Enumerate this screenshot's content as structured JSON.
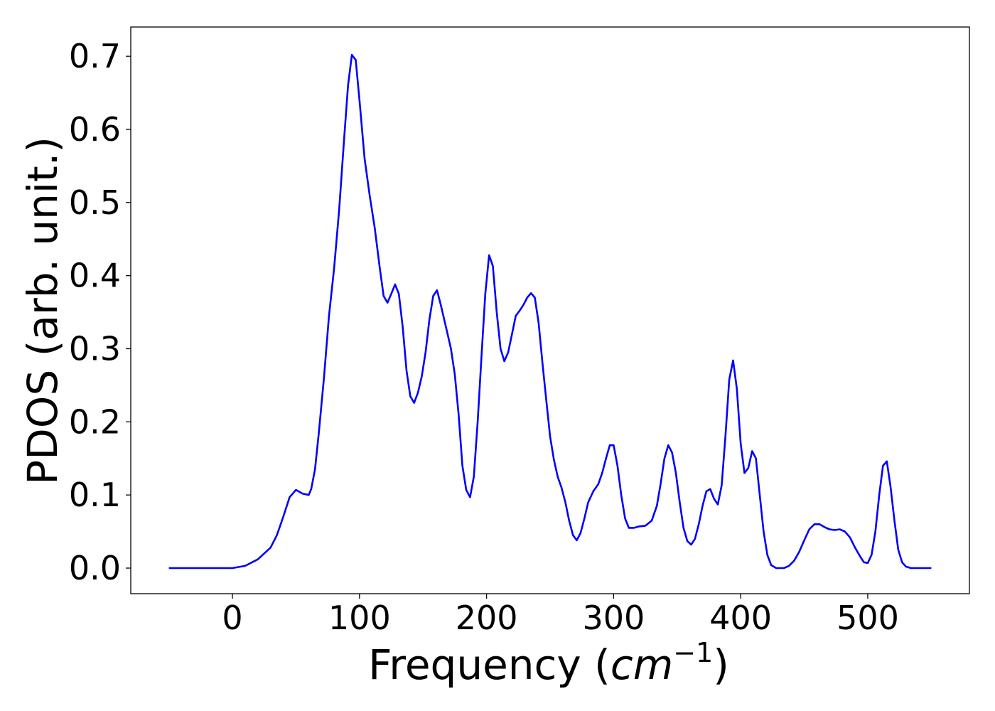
{
  "chart_data": {
    "type": "line",
    "title": "",
    "xlabel": "Frequency",
    "xlabel_unit": "cm",
    "xlabel_unit_exponent": "−1",
    "ylabel": "PDOS (arb. unit.)",
    "xlim": [
      -80,
      580
    ],
    "ylim": [
      -0.035,
      0.74
    ],
    "xticks": [
      0,
      100,
      200,
      300,
      400,
      500
    ],
    "yticks": [
      0.0,
      0.1,
      0.2,
      0.3,
      0.4,
      0.5,
      0.6,
      0.7
    ],
    "xtick_labels": [
      "0",
      "100",
      "200",
      "300",
      "400",
      "500"
    ],
    "ytick_labels": [
      "0.0",
      "0.1",
      "0.2",
      "0.3",
      "0.4",
      "0.5",
      "0.6",
      "0.7"
    ],
    "grid": false,
    "colors": {
      "line": "#0000ff",
      "axes": "#000000",
      "background": "#ffffff"
    },
    "series": [
      {
        "points": [
          [
            -50,
            0.0
          ],
          [
            0,
            0.0
          ],
          [
            10,
            0.003
          ],
          [
            20,
            0.012
          ],
          [
            30,
            0.028
          ],
          [
            35,
            0.045
          ],
          [
            40,
            0.07
          ],
          [
            45,
            0.097
          ],
          [
            50,
            0.107
          ],
          [
            55,
            0.102
          ],
          [
            60,
            0.1
          ],
          [
            62,
            0.108
          ],
          [
            65,
            0.135
          ],
          [
            68,
            0.185
          ],
          [
            72,
            0.26
          ],
          [
            76,
            0.345
          ],
          [
            80,
            0.41
          ],
          [
            84,
            0.49
          ],
          [
            88,
            0.59
          ],
          [
            91,
            0.66
          ],
          [
            94,
            0.702
          ],
          [
            97,
            0.695
          ],
          [
            100,
            0.64
          ],
          [
            104,
            0.56
          ],
          [
            108,
            0.51
          ],
          [
            112,
            0.465
          ],
          [
            116,
            0.41
          ],
          [
            119,
            0.372
          ],
          [
            122,
            0.363
          ],
          [
            125,
            0.375
          ],
          [
            128,
            0.388
          ],
          [
            131,
            0.375
          ],
          [
            134,
            0.33
          ],
          [
            137,
            0.27
          ],
          [
            140,
            0.235
          ],
          [
            143,
            0.226
          ],
          [
            146,
            0.24
          ],
          [
            149,
            0.262
          ],
          [
            152,
            0.295
          ],
          [
            155,
            0.34
          ],
          [
            158,
            0.372
          ],
          [
            161,
            0.38
          ],
          [
            164,
            0.36
          ],
          [
            168,
            0.33
          ],
          [
            172,
            0.3
          ],
          [
            175,
            0.265
          ],
          [
            178,
            0.21
          ],
          [
            181,
            0.14
          ],
          [
            184,
            0.107
          ],
          [
            187,
            0.097
          ],
          [
            190,
            0.125
          ],
          [
            193,
            0.2
          ],
          [
            196,
            0.29
          ],
          [
            199,
            0.375
          ],
          [
            202,
            0.428
          ],
          [
            205,
            0.413
          ],
          [
            208,
            0.35
          ],
          [
            211,
            0.3
          ],
          [
            214,
            0.283
          ],
          [
            217,
            0.295
          ],
          [
            220,
            0.32
          ],
          [
            223,
            0.345
          ],
          [
            226,
            0.352
          ],
          [
            229,
            0.36
          ],
          [
            232,
            0.37
          ],
          [
            235,
            0.376
          ],
          [
            238,
            0.37
          ],
          [
            241,
            0.335
          ],
          [
            244,
            0.28
          ],
          [
            247,
            0.23
          ],
          [
            250,
            0.18
          ],
          [
            253,
            0.148
          ],
          [
            256,
            0.125
          ],
          [
            259,
            0.11
          ],
          [
            262,
            0.09
          ],
          [
            265,
            0.065
          ],
          [
            268,
            0.045
          ],
          [
            271,
            0.038
          ],
          [
            274,
            0.048
          ],
          [
            277,
            0.068
          ],
          [
            280,
            0.09
          ],
          [
            284,
            0.105
          ],
          [
            288,
            0.115
          ],
          [
            291,
            0.13
          ],
          [
            294,
            0.15
          ],
          [
            297,
            0.168
          ],
          [
            300,
            0.168
          ],
          [
            303,
            0.14
          ],
          [
            306,
            0.1
          ],
          [
            309,
            0.068
          ],
          [
            312,
            0.055
          ],
          [
            316,
            0.055
          ],
          [
            320,
            0.057
          ],
          [
            325,
            0.058
          ],
          [
            330,
            0.065
          ],
          [
            334,
            0.085
          ],
          [
            337,
            0.115
          ],
          [
            340,
            0.15
          ],
          [
            343,
            0.168
          ],
          [
            346,
            0.158
          ],
          [
            349,
            0.13
          ],
          [
            352,
            0.09
          ],
          [
            355,
            0.055
          ],
          [
            358,
            0.037
          ],
          [
            361,
            0.032
          ],
          [
            364,
            0.04
          ],
          [
            367,
            0.06
          ],
          [
            370,
            0.085
          ],
          [
            373,
            0.105
          ],
          [
            376,
            0.108
          ],
          [
            379,
            0.095
          ],
          [
            382,
            0.087
          ],
          [
            385,
            0.113
          ],
          [
            388,
            0.18
          ],
          [
            391,
            0.258
          ],
          [
            394,
            0.284
          ],
          [
            397,
            0.245
          ],
          [
            400,
            0.17
          ],
          [
            403,
            0.13
          ],
          [
            406,
            0.137
          ],
          [
            409,
            0.16
          ],
          [
            412,
            0.15
          ],
          [
            415,
            0.1
          ],
          [
            418,
            0.05
          ],
          [
            421,
            0.018
          ],
          [
            424,
            0.004
          ],
          [
            428,
            0.0
          ],
          [
            434,
            0.0
          ],
          [
            438,
            0.003
          ],
          [
            442,
            0.01
          ],
          [
            446,
            0.022
          ],
          [
            450,
            0.038
          ],
          [
            454,
            0.053
          ],
          [
            458,
            0.06
          ],
          [
            462,
            0.06
          ],
          [
            466,
            0.056
          ],
          [
            470,
            0.053
          ],
          [
            474,
            0.052
          ],
          [
            478,
            0.053
          ],
          [
            482,
            0.05
          ],
          [
            486,
            0.042
          ],
          [
            490,
            0.028
          ],
          [
            494,
            0.016
          ],
          [
            497,
            0.008
          ],
          [
            500,
            0.007
          ],
          [
            503,
            0.018
          ],
          [
            506,
            0.05
          ],
          [
            509,
            0.1
          ],
          [
            512,
            0.14
          ],
          [
            515,
            0.146
          ],
          [
            518,
            0.11
          ],
          [
            521,
            0.065
          ],
          [
            524,
            0.025
          ],
          [
            527,
            0.008
          ],
          [
            530,
            0.002
          ],
          [
            534,
            0.0
          ],
          [
            550,
            0.0
          ]
        ]
      }
    ]
  }
}
